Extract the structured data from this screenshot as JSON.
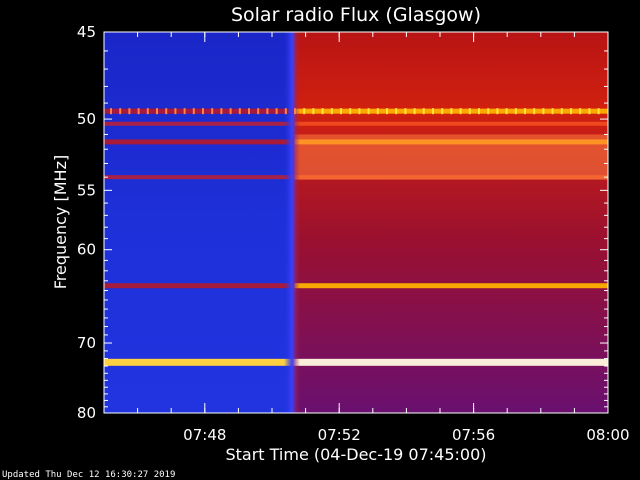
{
  "chart_data": {
    "type": "heatmap",
    "title": "Solar radio Flux (Glasgow)",
    "xlabel": "Start Time (04-Dec-19 07:45:00)",
    "ylabel": "Frequency [MHz]",
    "x_ticks": [
      "07:48",
      "07:52",
      "07:56",
      "08:00"
    ],
    "y_ticks": [
      "45",
      "50",
      "55",
      "60",
      "70",
      "80"
    ],
    "x_range": [
      "07:45:00",
      "08:00:00"
    ],
    "y_range": [
      45,
      80
    ],
    "colormap": "blue-red-yellow",
    "features": {
      "onset_time": "07:50:40",
      "before_onset_color": "#1a2bd0",
      "after_onset_color": "#c01818"
    },
    "bands": [
      {
        "freq": 49.5,
        "level": "high",
        "note": "periodic dotted interference"
      },
      {
        "freq": 50.3,
        "level": "medium"
      },
      {
        "freq": 51.5,
        "level": "high"
      },
      {
        "freq": 54.0,
        "level": "medium"
      },
      {
        "freq": 63.5,
        "level": "high"
      },
      {
        "freq": 72.5,
        "level": "very-high"
      }
    ]
  },
  "footer": {
    "updated": "Updated Thu Dec 12 16:30:27 2019"
  }
}
